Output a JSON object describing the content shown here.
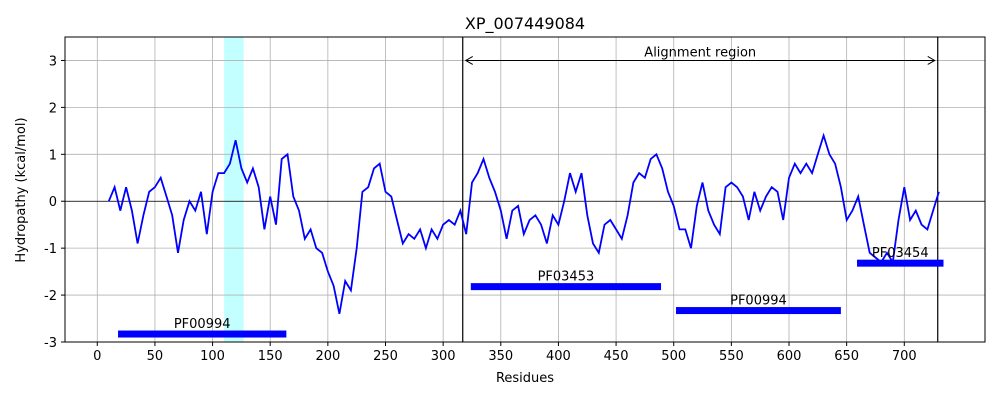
{
  "chart_data": {
    "type": "line",
    "title": "XP_007449084",
    "xlabel": "Residues",
    "ylabel": "Hydropathy (kcal/mol)",
    "xlim": [
      -28,
      770
    ],
    "ylim": [
      -3,
      3.5
    ],
    "xticks": [
      0,
      50,
      100,
      150,
      200,
      250,
      300,
      350,
      400,
      450,
      500,
      550,
      600,
      650,
      700
    ],
    "yticks": [
      -3,
      -2,
      -1,
      0,
      1,
      2,
      3
    ],
    "grid": true,
    "x": [
      10,
      15,
      20,
      25,
      30,
      35,
      40,
      45,
      50,
      55,
      60,
      65,
      70,
      75,
      80,
      85,
      90,
      95,
      100,
      105,
      110,
      115,
      120,
      125,
      130,
      135,
      140,
      145,
      150,
      155,
      160,
      165,
      170,
      175,
      180,
      185,
      190,
      195,
      200,
      205,
      210,
      215,
      220,
      225,
      230,
      235,
      240,
      245,
      250,
      255,
      260,
      265,
      270,
      275,
      280,
      285,
      290,
      295,
      300,
      305,
      310,
      315,
      320,
      325,
      330,
      335,
      340,
      345,
      350,
      355,
      360,
      365,
      370,
      375,
      380,
      385,
      390,
      395,
      400,
      405,
      410,
      415,
      420,
      425,
      430,
      435,
      440,
      445,
      450,
      455,
      460,
      465,
      470,
      475,
      480,
      485,
      490,
      495,
      500,
      505,
      510,
      515,
      520,
      525,
      530,
      535,
      540,
      545,
      550,
      555,
      560,
      565,
      570,
      575,
      580,
      585,
      590,
      595,
      600,
      605,
      610,
      615,
      620,
      625,
      630,
      635,
      640,
      645,
      650,
      655,
      660,
      665,
      670,
      675,
      680,
      685,
      690,
      695,
      700,
      705,
      710,
      715,
      720,
      725,
      730
    ],
    "series": [
      {
        "color": "#0000ff",
        "values": [
          0,
          0.3,
          -0.2,
          0.3,
          -0.2,
          -0.9,
          -0.3,
          0.2,
          0.3,
          0.5,
          0.1,
          -0.3,
          -1.1,
          -0.4,
          0,
          -0.2,
          0.2,
          -0.7,
          0.2,
          0.6,
          0.6,
          0.8,
          1.3,
          0.7,
          0.4,
          0.7,
          0.3,
          -0.6,
          0.1,
          -0.5,
          0.9,
          1.0,
          0.1,
          -0.2,
          -0.8,
          -0.6,
          -1.0,
          -1.1,
          -1.5,
          -1.8,
          -2.4,
          -1.7,
          -1.9,
          -1.0,
          0.2,
          0.3,
          0.7,
          0.8,
          0.2,
          0.1,
          -0.4,
          -0.9,
          -0.7,
          -0.8,
          -0.6,
          -1.0,
          -0.6,
          -0.8,
          -0.5,
          -0.4,
          -0.5,
          -0.2,
          -0.7,
          0.4,
          0.6,
          0.9,
          0.5,
          0.2,
          -0.2,
          -0.8,
          -0.2,
          -0.1,
          -0.7,
          -0.4,
          -0.3,
          -0.5,
          -0.9,
          -0.3,
          -0.5,
          0,
          0.6,
          0.2,
          0.6,
          -0.3,
          -0.9,
          -1.1,
          -0.5,
          -0.4,
          -0.6,
          -0.8,
          -0.3,
          0.4,
          0.6,
          0.5,
          0.9,
          1.0,
          0.7,
          0.2,
          -0.1,
          -0.6,
          -0.6,
          -1.0,
          -0.1,
          0.4,
          -0.2,
          -0.5,
          -0.7,
          0.3,
          0.4,
          0.3,
          0.1,
          -0.4,
          0.2,
          -0.2,
          0.1,
          0.3,
          0.2,
          -0.4,
          0.5,
          0.8,
          0.6,
          0.8,
          0.6,
          1.0,
          1.4,
          1.0,
          0.8,
          0.3,
          -0.4,
          -0.2,
          0.1,
          -0.5,
          -1.1,
          -1.2,
          -1.3,
          -1.1,
          -1.3,
          -0.4,
          0.3,
          -0.4,
          -0.2,
          -0.5,
          -0.6,
          -0.2,
          0.2
        ]
      }
    ],
    "zero_line": 0,
    "highlight_span": {
      "start": 110,
      "end": 127,
      "color": "#c4ffff"
    },
    "region": {
      "label": "Alignment region",
      "start": 317,
      "end": 729,
      "y": 3
    },
    "domains": [
      {
        "name": "PF00994",
        "start": 18,
        "end": 164,
        "y": -2.83
      },
      {
        "name": "PF03453",
        "start": 324,
        "end": 489,
        "y": -1.82
      },
      {
        "name": "PF00994",
        "start": 502,
        "end": 645,
        "y": -2.33
      },
      {
        "name": "PF03454",
        "start": 659,
        "end": 734,
        "y": -1.32
      }
    ],
    "domain_color": "#0000ff"
  }
}
